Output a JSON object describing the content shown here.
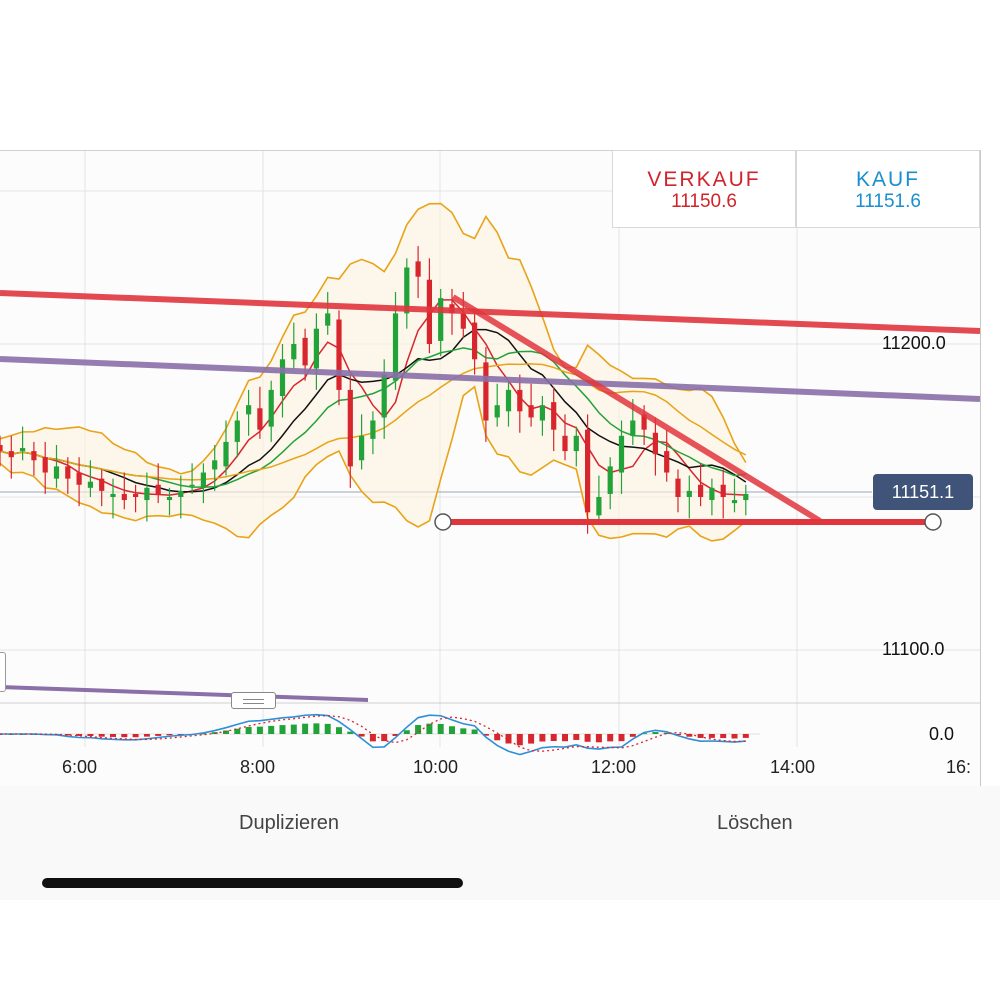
{
  "quote": {
    "sell_label": "VERKAUF",
    "sell_price": "11150.6",
    "buy_label": "KAUF",
    "buy_price": "11151.6"
  },
  "price_axis": {
    "labels": [
      "11200.0",
      "11100.0"
    ],
    "current_price": "11151.1",
    "indicator_zero": "0.0"
  },
  "time_axis": {
    "labels": [
      "6:00",
      "8:00",
      "10:00",
      "12:00",
      "14:00",
      "16:"
    ]
  },
  "actions": {
    "duplicate": "Duplizieren",
    "delete": "Löschen"
  },
  "colors": {
    "bull_candle": "#22a339",
    "bear_candle": "#d7262e",
    "trendline_red": "#e0353d",
    "trendline_purple": "#8a6fa8",
    "bollinger": "#e8a317",
    "current_price_tag": "#3f5478"
  },
  "chart_data": {
    "type": "candlestick",
    "title": "",
    "xlabel": "",
    "ylabel": "",
    "x_ticks": [
      "6:00",
      "8:00",
      "10:00",
      "12:00",
      "14:00",
      "16:"
    ],
    "y_ticks": [
      11100.0,
      11200.0
    ],
    "ylim": [
      11085,
      11250
    ],
    "current_price": 11151.1,
    "bid": 11150.6,
    "ask": 11151.6,
    "closes": [
      11165,
      11163,
      11166,
      11162,
      11158,
      11160,
      11156,
      11154,
      11155,
      11152,
      11151,
      11149,
      11150,
      11153,
      11151,
      11150,
      11152,
      11154,
      11158,
      11162,
      11168,
      11175,
      11180,
      11172,
      11185,
      11195,
      11200,
      11193,
      11205,
      11210,
      11185,
      11160,
      11170,
      11175,
      11190,
      11210,
      11225,
      11222,
      11200,
      11215,
      11210,
      11205,
      11195,
      11175,
      11180,
      11185,
      11178,
      11176,
      11180,
      11172,
      11165,
      11170,
      11145,
      11150,
      11160,
      11170,
      11175,
      11172,
      11164,
      11158,
      11150,
      11152,
      11150,
      11153,
      11150,
      11149,
      11151
    ],
    "indicator_zero": 0.0,
    "grid": true
  }
}
